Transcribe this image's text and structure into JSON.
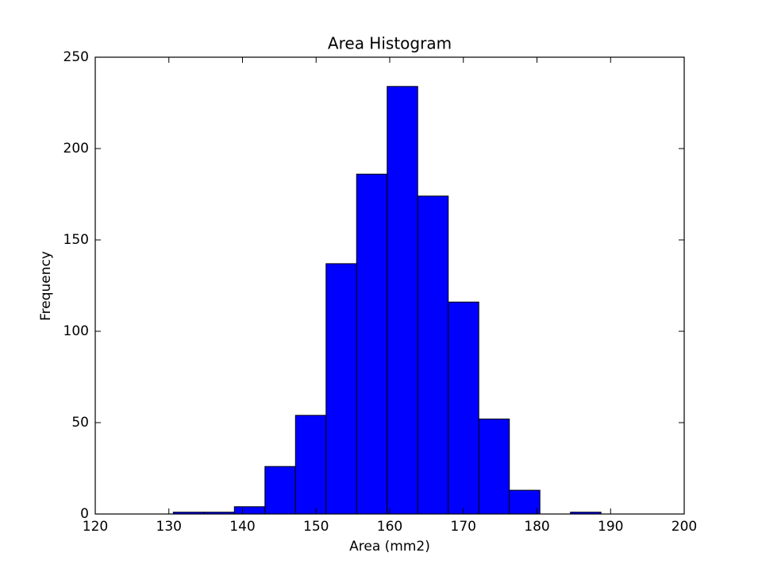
{
  "chart_data": {
    "type": "histogram",
    "title": "Area Histogram",
    "x_label": "Area (mm2)",
    "y_label": "Frequency",
    "bins": [
      130.6,
      134.75,
      138.9,
      143.05,
      147.2,
      151.35,
      155.5,
      159.65,
      163.8,
      167.95,
      172.1,
      176.25,
      180.4,
      184.55,
      188.7
    ],
    "counts": [
      1,
      1,
      4,
      26,
      54,
      137,
      186,
      234,
      174,
      116,
      52,
      13,
      0,
      1
    ],
    "color": "#0000ff",
    "edgecolor": "#000000",
    "xlim": [
      120,
      200
    ],
    "xticks": [
      120,
      130,
      140,
      150,
      160,
      170,
      180,
      190,
      200
    ],
    "ylim": [
      0,
      250
    ],
    "yticks": [
      0,
      50,
      100,
      150,
      200,
      250
    ],
    "grid": false
  }
}
